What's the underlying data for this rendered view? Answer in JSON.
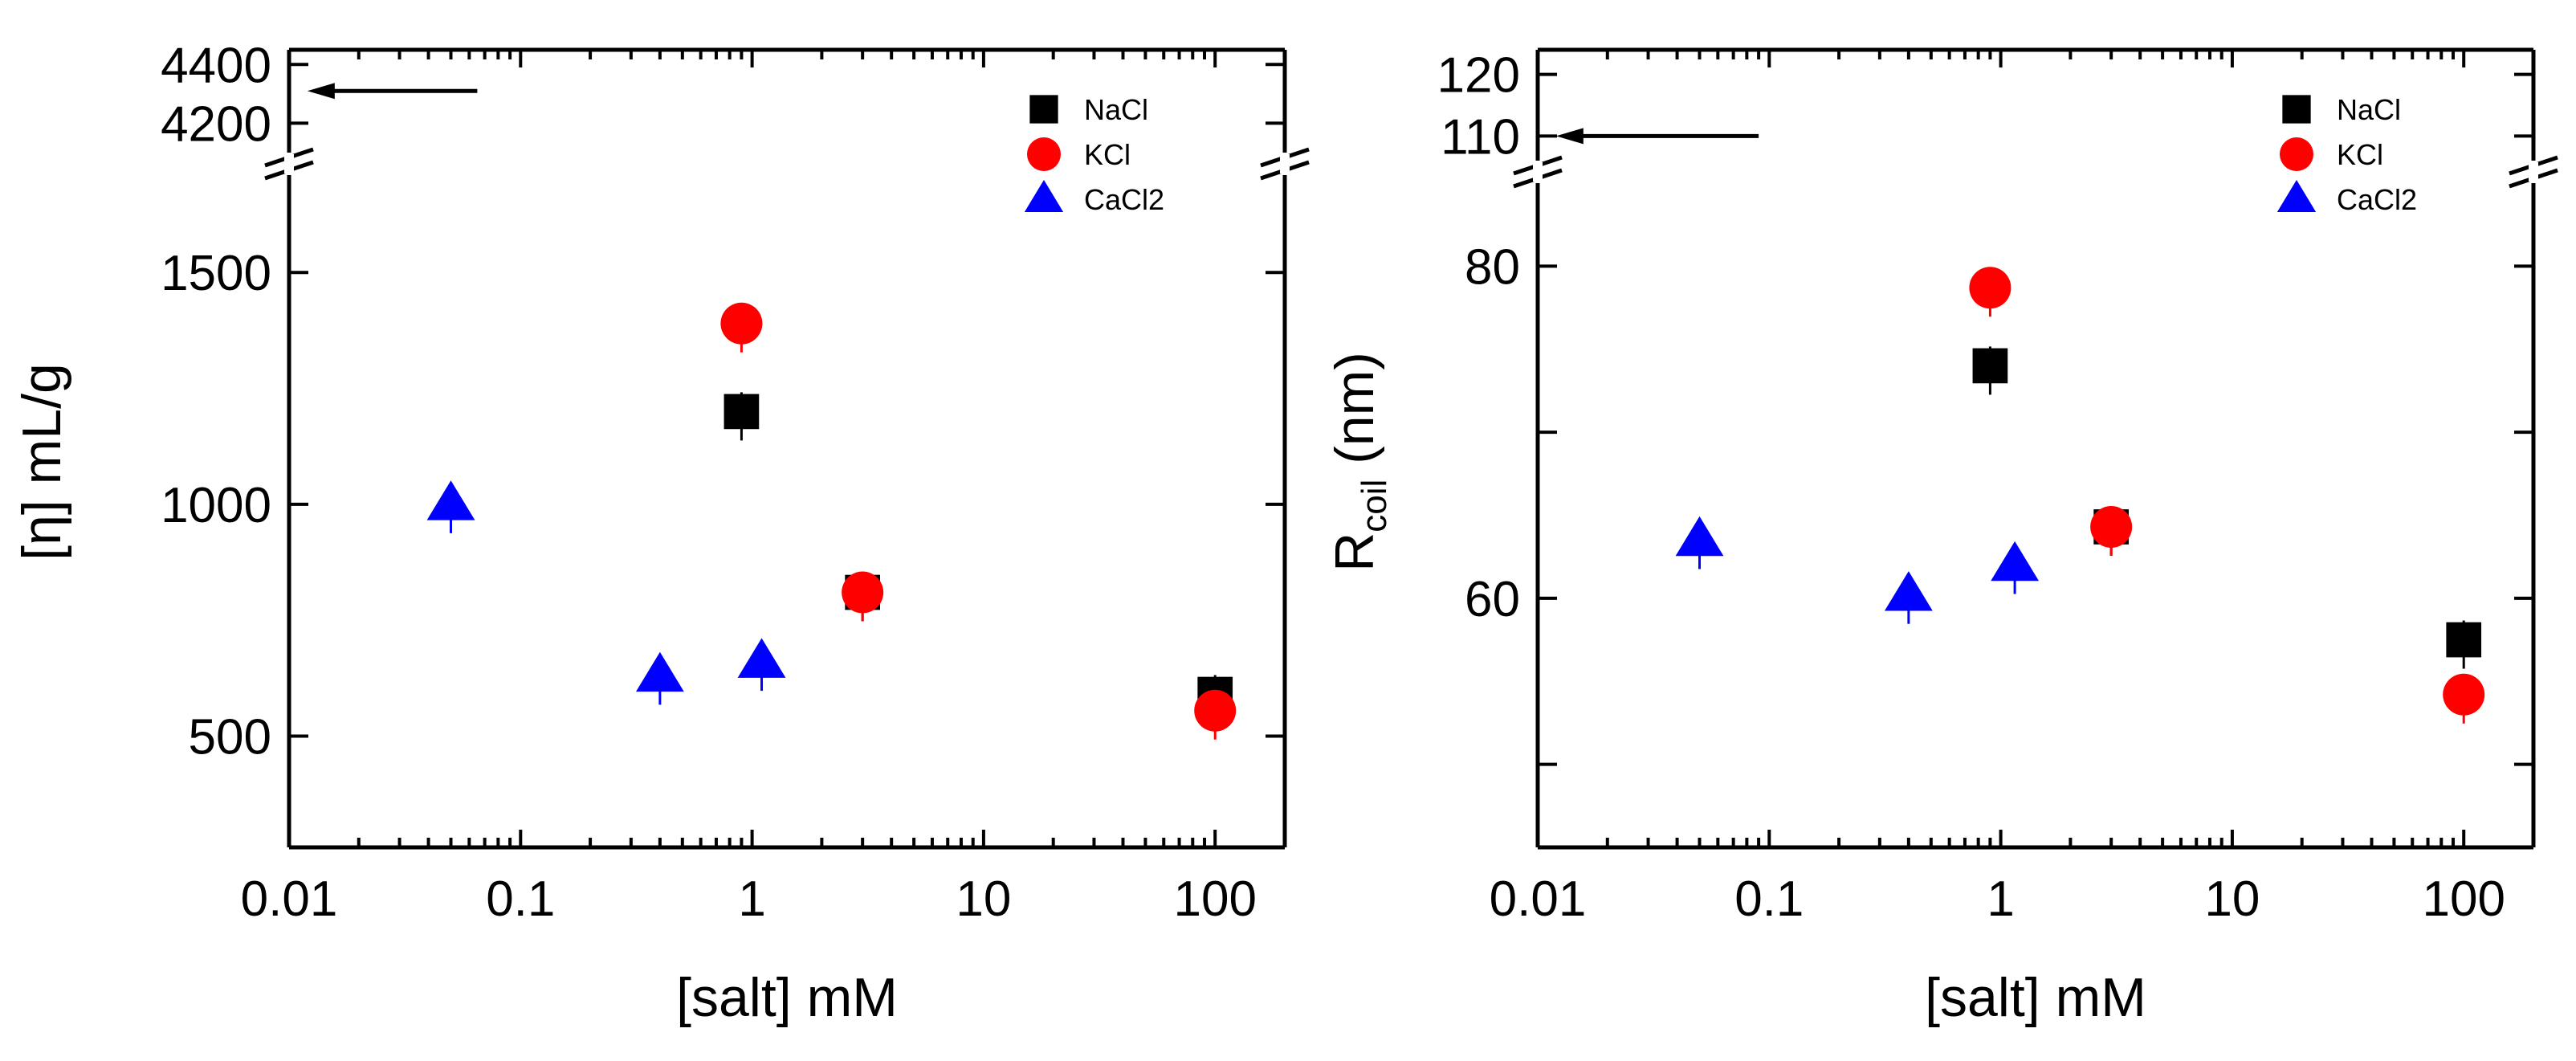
{
  "chart_data": [
    {
      "type": "scatter",
      "xlabel": "[salt] mM",
      "ylabel": "[η] mL/g",
      "ylabel_sub": "",
      "x_scale": "log",
      "xlim": [
        0.01,
        200
      ],
      "x_ticks": [
        0.01,
        0.1,
        1,
        10,
        100
      ],
      "x_tick_labels": [
        "0.01",
        "0.1",
        "1",
        "10",
        "100"
      ],
      "ylim_lower": [
        260,
        1710
      ],
      "y_ticks_lower": [
        500,
        1000,
        1500
      ],
      "y_tick_labels_lower": [
        "500",
        "1000",
        "1500"
      ],
      "ylim_upper": [
        4100,
        4450
      ],
      "y_ticks_upper": [
        4200,
        4400
      ],
      "y_tick_labels_upper": [
        "4200",
        "4400"
      ],
      "y_broken": true,
      "arrow_value": 4310,
      "arrow_x_range": [
        0.012,
        0.065
      ],
      "legend_position": "top-right",
      "series": [
        {
          "name": "NaCl",
          "marker": "square",
          "color": "#000000",
          "x": [
            0.9,
            3,
            100
          ],
          "y": [
            1200,
            810,
            590
          ]
        },
        {
          "name": "KCl",
          "marker": "circle",
          "color": "#ff0000",
          "x": [
            0.9,
            3,
            100
          ],
          "y": [
            1390,
            810,
            555
          ]
        },
        {
          "name": "CaCl2",
          "marker": "triangle",
          "color": "#0000ff",
          "x": [
            0.05,
            0.4,
            1.1
          ],
          "y": [
            1000,
            630,
            660
          ]
        }
      ]
    },
    {
      "type": "scatter",
      "xlabel": "[salt] mM",
      "ylabel": "R",
      "ylabel_sub": "coil",
      "ylabel_suffix": " (nm)",
      "x_scale": "log",
      "xlim": [
        0.01,
        200
      ],
      "x_ticks": [
        0.01,
        0.1,
        1,
        10,
        100
      ],
      "x_tick_labels": [
        "0.01",
        "0.1",
        "1",
        "10",
        "100"
      ],
      "ylim_lower": [
        45,
        85
      ],
      "y_ticks_lower": [
        60,
        80
      ],
      "y_tick_labels_lower": [
        "60",
        "80"
      ],
      "y_minor_ticks_lower": [
        50,
        70
      ],
      "ylim_upper": [
        106,
        124
      ],
      "y_ticks_upper": [
        110,
        120
      ],
      "y_tick_labels_upper": [
        "110",
        "120"
      ],
      "y_broken": true,
      "arrow_value": 110,
      "arrow_x_range": [
        0.012,
        0.09
      ],
      "legend_position": "top-right",
      "series": [
        {
          "name": "NaCl",
          "marker": "square",
          "color": "#000000",
          "x": [
            0.9,
            3,
            100
          ],
          "y": [
            74,
            64.3,
            57.5
          ]
        },
        {
          "name": "KCl",
          "marker": "circle",
          "color": "#ff0000",
          "x": [
            0.9,
            3,
            100
          ],
          "y": [
            78.7,
            64.3,
            54.2
          ]
        },
        {
          "name": "CaCl2",
          "marker": "triangle",
          "color": "#0000ff",
          "x": [
            0.05,
            0.4,
            1.15
          ],
          "y": [
            63.5,
            60.2,
            62
          ]
        }
      ]
    }
  ]
}
